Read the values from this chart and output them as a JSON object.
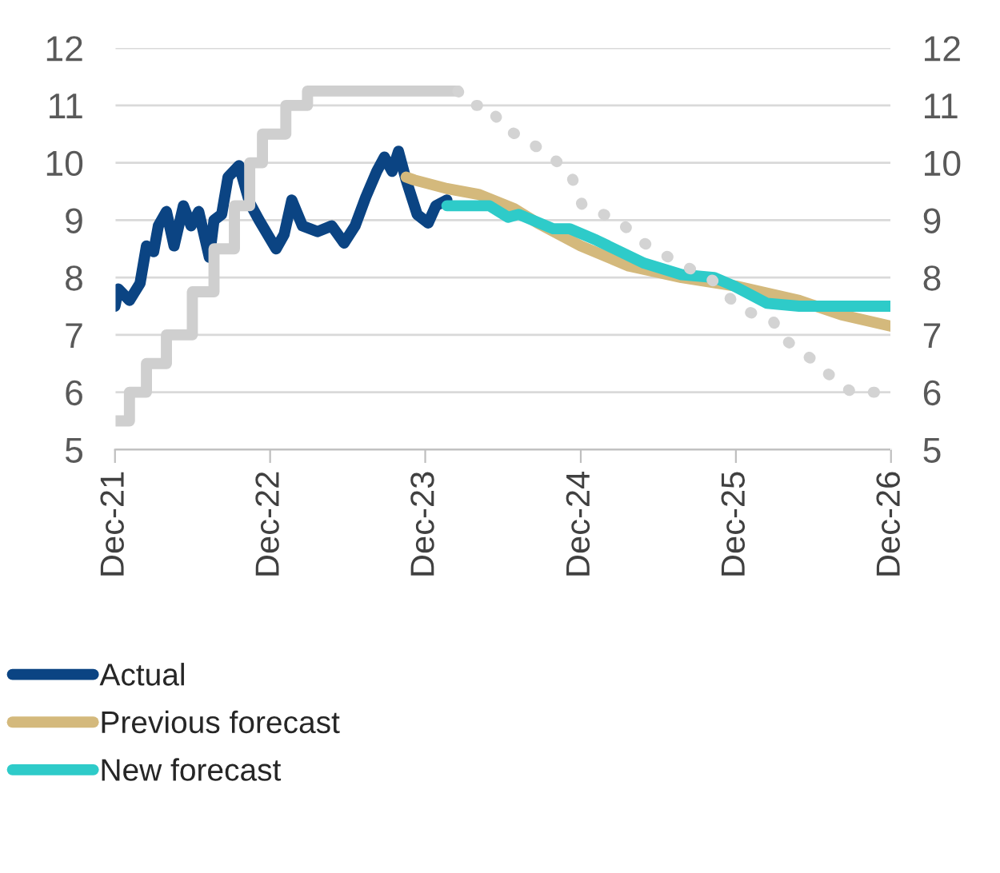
{
  "chart_data": {
    "type": "line",
    "x": [
      "2021-12-31",
      "2022-01-08",
      "2022-02-03",
      "2022-02-28",
      "2022-03-15",
      "2022-04-01",
      "2022-04-12",
      "2022-05-01",
      "2022-05-19",
      "2022-06-10",
      "2022-06-28",
      "2022-07-16",
      "2022-08-10",
      "2022-08-21",
      "2022-09-08",
      "2022-09-23",
      "2022-10-19",
      "2022-11-13",
      "2022-12-05",
      "2023-01-14",
      "2023-02-02",
      "2023-02-20",
      "2023-03-17",
      "2023-04-22",
      "2023-05-25",
      "2023-06-23",
      "2023-07-19",
      "2023-08-13",
      "2023-09-08",
      "2023-09-26",
      "2023-10-14",
      "2023-10-29",
      "2023-11-16",
      "2023-12-12",
      "2024-01-07",
      "2024-01-25",
      "2024-02-20"
    ],
    "series": [
      {
        "name": "Actual",
        "color": "#0b4483",
        "values": [
          7.5,
          7.8,
          7.6,
          7.9,
          8.55,
          8.45,
          8.9,
          9.15,
          8.55,
          9.25,
          8.9,
          9.15,
          8.35,
          9.0,
          9.1,
          9.75,
          9.95,
          9.3,
          9.0,
          8.5,
          8.75,
          9.35,
          8.9,
          8.8,
          8.9,
          8.6,
          8.9,
          9.4,
          9.85,
          10.1,
          9.85,
          10.2,
          9.7,
          9.1,
          8.95,
          9.25,
          9.35
        ]
      },
      {
        "name": "Previous forecast",
        "color": "#d4b97c",
        "x": [
          "2023-11-16",
          "2023-12-05",
          "2024-02-20",
          "2024-05-04",
          "2024-07-27",
          "2024-09-20",
          "2024-12-31",
          "2025-04-23",
          "2025-08-25",
          "2025-12-31",
          "2026-05-29",
          "2026-09-05",
          "2026-12-31"
        ],
        "values": [
          9.75,
          9.7,
          9.55,
          9.45,
          9.2,
          8.95,
          8.55,
          8.2,
          8.0,
          7.85,
          7.6,
          7.35,
          7.15
        ]
      },
      {
        "name": "New forecast",
        "color": "#2ecbc9",
        "x": [
          "2024-02-20",
          "2024-05-30",
          "2024-07-13",
          "2024-08-07",
          "2024-10-27",
          "2024-12-05",
          "2025-02-06",
          "2025-05-29",
          "2025-08-25",
          "2025-11-10",
          "2025-12-27",
          "2026-03-14",
          "2026-05-29",
          "2026-12-31"
        ],
        "values": [
          9.25,
          9.25,
          9.05,
          9.1,
          8.85,
          8.85,
          8.65,
          8.25,
          8.05,
          8.0,
          7.85,
          7.55,
          7.5,
          7.5
        ]
      },
      {
        "type": "step",
        "color": "#cfcfcf",
        "x": [
          "2021-12-31",
          "2022-02-03",
          "2022-03-15",
          "2022-05-01",
          "2022-07-01",
          "2022-08-21",
          "2022-10-08",
          "2022-11-13",
          "2022-12-13",
          "2023-02-06",
          "2023-03-29",
          "2024-03-17"
        ],
        "values": [
          5.5,
          6.0,
          6.5,
          7.0,
          7.75,
          8.5,
          9.25,
          10.0,
          10.5,
          11.0,
          11.25,
          11.25
        ]
      },
      {
        "color": "#d3d3d3",
        "line_style": "dotted",
        "x": [
          "2024-03-17",
          "2024-04-12",
          "2024-05-30",
          "2024-07-01",
          "2024-08-14",
          "2024-10-04",
          "2024-12-05",
          "2025-01-04",
          "2025-03-28",
          "2025-05-29",
          "2025-08-07",
          "2025-11-06",
          "2026-01-11",
          "2026-03-28",
          "2026-04-19",
          "2026-06-23",
          "2026-08-24",
          "2026-09-30",
          "2026-12-31"
        ],
        "values": [
          11.25,
          11.0,
          11.0,
          10.6,
          10.45,
          10.2,
          9.85,
          9.25,
          9.0,
          8.6,
          8.3,
          7.95,
          7.45,
          7.25,
          6.95,
          6.6,
          6.2,
          6.0,
          6.0
        ]
      }
    ],
    "xlim": [
      "2021-12-31",
      "2026-12-31"
    ],
    "xticks": [
      {
        "value": "2021-12-31",
        "label": "Dec-21"
      },
      {
        "value": "2022-12-31",
        "label": "Dec-22"
      },
      {
        "value": "2023-12-31",
        "label": "Dec-23"
      },
      {
        "value": "2024-12-31",
        "label": "Dec-24"
      },
      {
        "value": "2025-12-31",
        "label": "Dec-25"
      },
      {
        "value": "2026-12-31",
        "label": "Dec-26"
      }
    ],
    "ylim": [
      5,
      12
    ],
    "yticks": [
      5,
      6,
      7,
      8,
      9,
      10,
      11,
      12
    ],
    "y2lim": [
      5,
      12
    ],
    "y2ticks": [
      5,
      6,
      7,
      8,
      9,
      10,
      11,
      12
    ],
    "grid": "y",
    "legend": "bottom"
  }
}
